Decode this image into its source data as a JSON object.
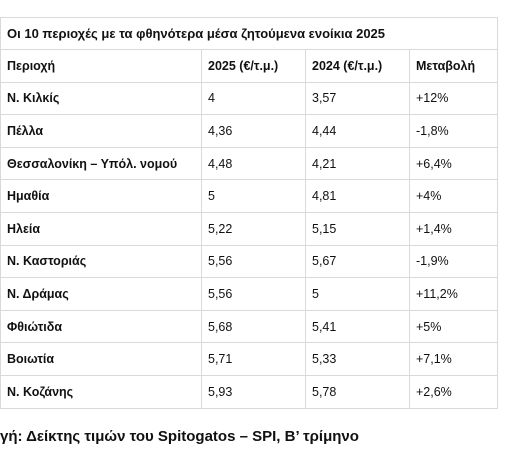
{
  "table": {
    "title": "Οι 10 περιοχές με τα φθηνότερα μέσα ζητούμενα ενοίκια 2025",
    "headers": [
      "Περιοχή",
      "2025 (€/τ.μ.)",
      "2024 (€/τ.μ.)",
      "Μεταβολή"
    ],
    "rows": [
      [
        "Ν. Κιλκίς",
        "4",
        "3,57",
        "+12%"
      ],
      [
        "Πέλλα",
        "4,36",
        "4,44",
        "-1,8%"
      ],
      [
        "Θεσσαλονίκη – Υπόλ. νομού",
        "4,48",
        "4,21",
        "+6,4%"
      ],
      [
        "Ημαθία",
        "5",
        "4,81",
        "+4%"
      ],
      [
        "Ηλεία",
        "5,22",
        "5,15",
        "+1,4%"
      ],
      [
        "Ν. Καστοριάς",
        "5,56",
        "5,67",
        "-1,9%"
      ],
      [
        "Ν. Δράμας",
        "5,56",
        "5",
        "+11,2%"
      ],
      [
        "Φθιώτιδα",
        "5,68",
        "5,41",
        "+5%"
      ],
      [
        "Βοιωτία",
        "5,71",
        "5,33",
        "+7,1%"
      ],
      [
        "Ν. Κοζάνης",
        "5,93",
        "5,78",
        "+2,6%"
      ]
    ]
  },
  "caption": "γή: Δείκτης τιμών του Spitogatos – SPI, Β’ τρίμηνο"
}
